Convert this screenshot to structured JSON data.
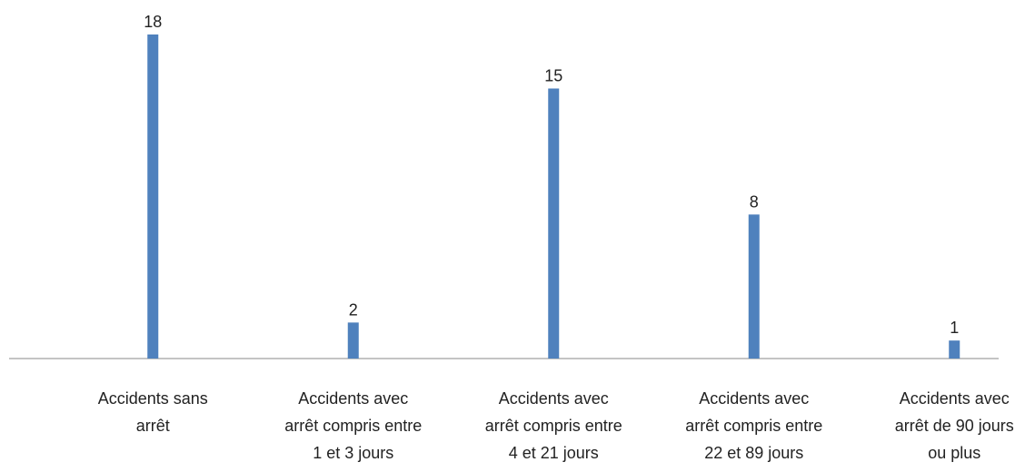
{
  "chart_data": {
    "type": "bar",
    "categories": [
      "Accidents sans arrêt",
      "Accidents avec arrêt compris entre 1 et 3 jours",
      "Accidents avec arrêt compris entre 4 et 21 jours",
      "Accidents avec arrêt compris entre 22 et 89 jours",
      "Accidents avec arrêt de 90 jours ou plus"
    ],
    "values": [
      18,
      2,
      15,
      8,
      1
    ],
    "color": "#4f81bd"
  }
}
